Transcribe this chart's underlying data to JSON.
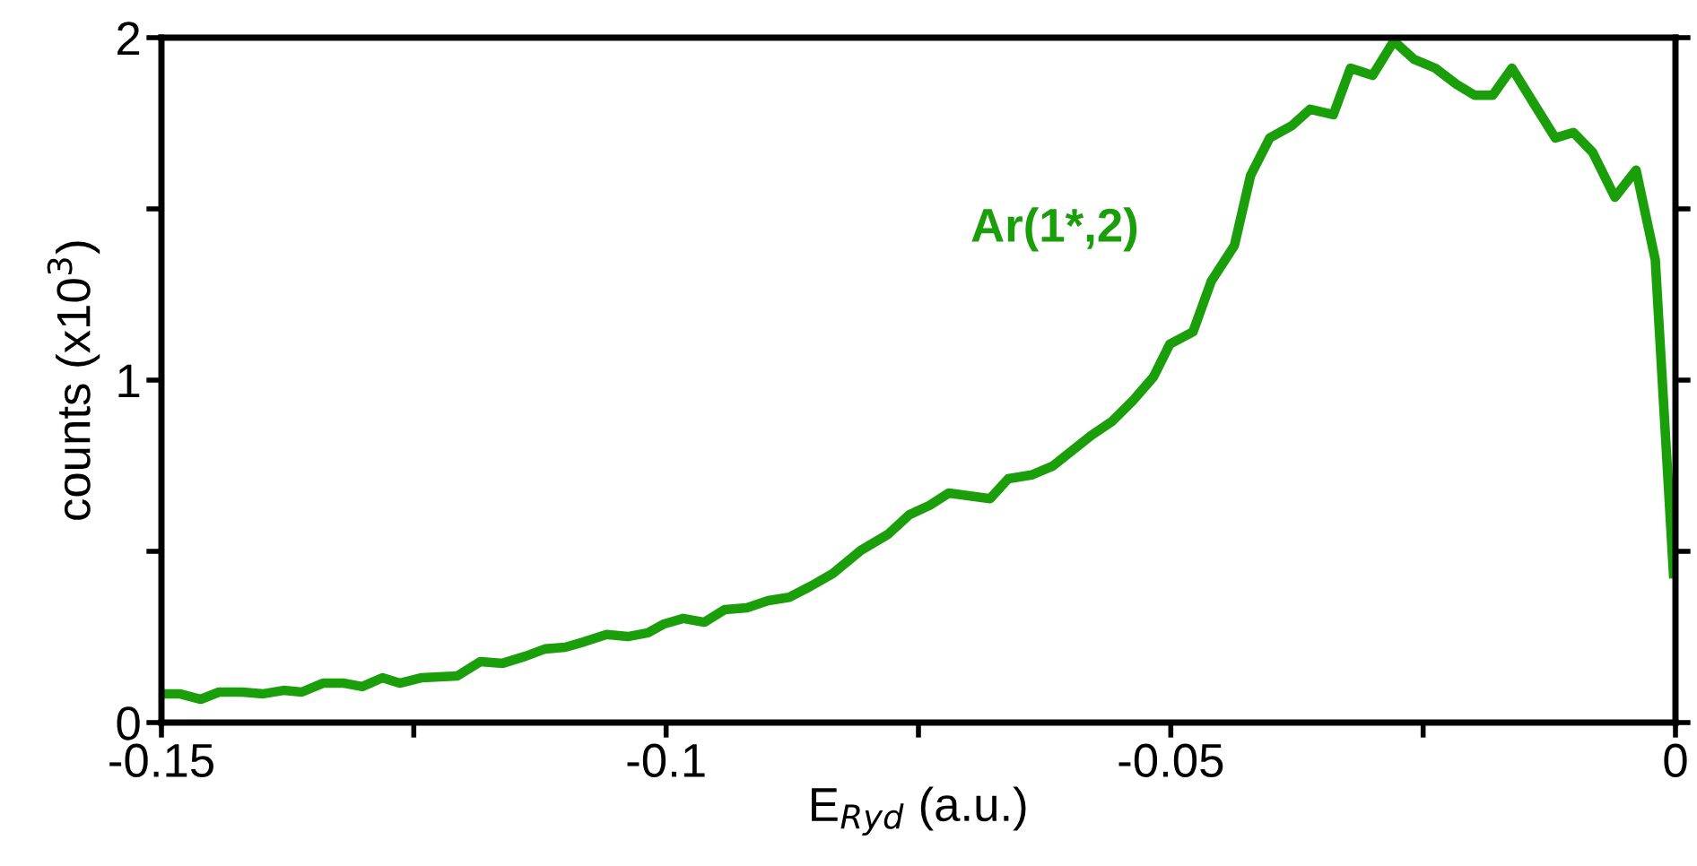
{
  "chart_data": {
    "type": "line",
    "xlabel": "E$_{Ryd}$ (a.u.)",
    "ylabel": "counts (x10$^{3}$)",
    "xlim": [
      -0.15,
      0
    ],
    "ylim": [
      0,
      2
    ],
    "xticks": [
      {
        "value": -0.15,
        "label": "-0.15"
      },
      {
        "value": -0.125,
        "label": null
      },
      {
        "value": -0.1,
        "label": "-0.1"
      },
      {
        "value": -0.075,
        "label": null
      },
      {
        "value": -0.05,
        "label": "-0.05"
      },
      {
        "value": -0.025,
        "label": null
      },
      0
    ],
    "yticks": [
      0,
      {
        "value": 0.5,
        "label": null
      },
      1,
      {
        "value": 1.5,
        "label": null
      },
      2
    ],
    "grid": false,
    "legend": false,
    "marker": "none",
    "line_style": "solid",
    "series": [
      {
        "name": "Ar(1*,2)",
        "color": "#1a9e0a",
        "x": [
          -0.15,
          -0.1482,
          -0.1461,
          -0.1443,
          -0.142,
          -0.1399,
          -0.1379,
          -0.1361,
          -0.134,
          -0.1319,
          -0.1301,
          -0.1281,
          -0.1264,
          -0.1242,
          -0.1207,
          -0.1184,
          -0.1162,
          -0.1139,
          -0.112,
          -0.11,
          -0.1081,
          -0.1059,
          -0.1038,
          -0.1018,
          -0.1002,
          -0.0983,
          -0.0962,
          -0.0942,
          -0.092,
          -0.0899,
          -0.0878,
          -0.0857,
          -0.0835,
          -0.0807,
          -0.078,
          -0.0759,
          -0.0739,
          -0.072,
          -0.0679,
          -0.0661,
          -0.0638,
          -0.0617,
          -0.0579,
          -0.0558,
          -0.0537,
          -0.0517,
          -0.0501,
          -0.0478,
          -0.046,
          -0.0437,
          -0.0421,
          -0.0402,
          -0.038,
          -0.0362,
          -0.0339,
          -0.0322,
          -0.03,
          -0.0279,
          -0.0259,
          -0.0238,
          -0.0217,
          -0.0199,
          -0.0181,
          -0.0162,
          -0.014,
          -0.0119,
          -0.0101,
          -0.0082,
          -0.006,
          -0.0039,
          -0.002,
          -0.0002
        ],
        "values": [
          0.084,
          0.084,
          0.068,
          0.089,
          0.089,
          0.084,
          0.094,
          0.089,
          0.115,
          0.115,
          0.105,
          0.131,
          0.115,
          0.131,
          0.136,
          0.178,
          0.173,
          0.194,
          0.215,
          0.22,
          0.236,
          0.257,
          0.251,
          0.262,
          0.288,
          0.304,
          0.293,
          0.33,
          0.335,
          0.356,
          0.366,
          0.398,
          0.435,
          0.503,
          0.55,
          0.607,
          0.634,
          0.67,
          0.654,
          0.712,
          0.723,
          0.749,
          0.838,
          0.88,
          0.942,
          1.01,
          1.105,
          1.141,
          1.288,
          1.393,
          1.597,
          1.707,
          1.743,
          1.791,
          1.775,
          1.911,
          1.89,
          1.99,
          1.937,
          1.911,
          1.864,
          1.832,
          1.832,
          1.911,
          1.806,
          1.707,
          1.723,
          1.665,
          1.534,
          1.613,
          1.351,
          0.435
        ]
      }
    ]
  }
}
